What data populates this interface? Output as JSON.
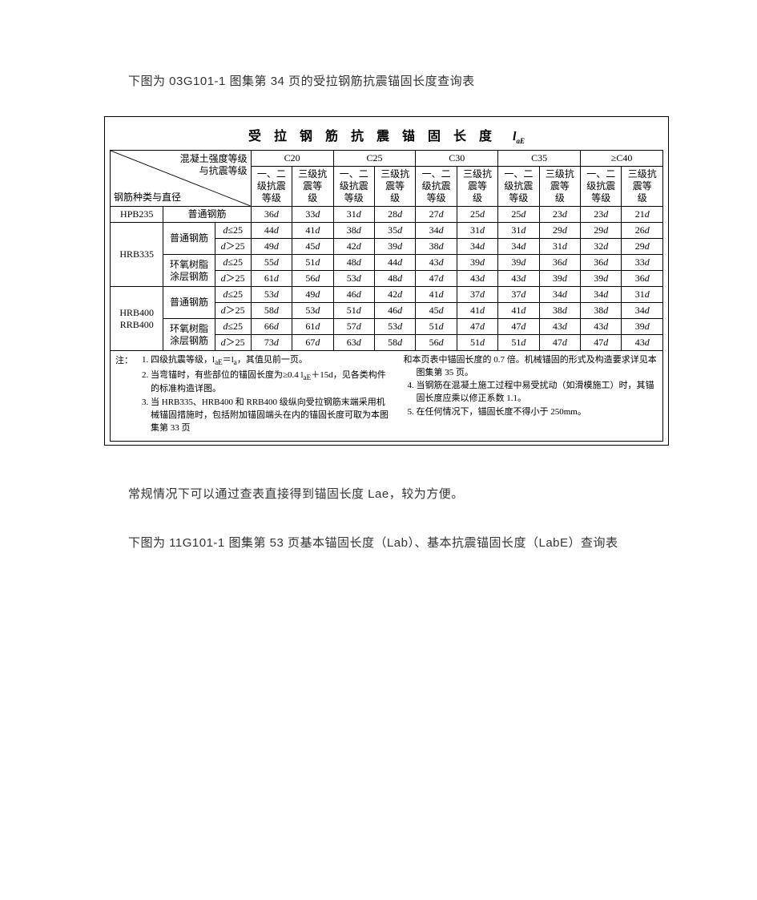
{
  "intro1": "下图为 03G101-1 图集第 34 页的受拉钢筋抗震锚固长度查询表",
  "tableTitle": "受 拉 钢 筋 抗 震 锚 固 长 度",
  "tableTitleSymbol": "l",
  "tableTitleSub": "aE",
  "diagTop1": "混凝土强度等级",
  "diagTop2": "与抗震等级",
  "diagBottom": "钢筋种类与直径",
  "gradeHeaders": [
    "C20",
    "C25",
    "C30",
    "C35",
    "≥C40"
  ],
  "subHeaderA": "一、二级抗震等级",
  "subHeaderB": "三级抗震等　　级",
  "rows": [
    {
      "h1": "HPB235",
      "h2": "普通钢筋",
      "cond": "",
      "vals": [
        "36d",
        "33d",
        "31d",
        "28d",
        "27d",
        "25d",
        "25d",
        "23d",
        "23d",
        "21d"
      ]
    },
    {
      "h1": "HRB335",
      "h2": "普通钢筋",
      "cond": "d≤25",
      "vals": [
        "44d",
        "41d",
        "38d",
        "35d",
        "34d",
        "31d",
        "31d",
        "29d",
        "29d",
        "26d"
      ]
    },
    {
      "h1": "",
      "h2": "",
      "cond": "d＞25",
      "vals": [
        "49d",
        "45d",
        "42d",
        "39d",
        "38d",
        "34d",
        "34d",
        "31d",
        "32d",
        "29d"
      ]
    },
    {
      "h1": "",
      "h2": "环氧树脂涂层钢筋",
      "cond": "d≤25",
      "vals": [
        "55d",
        "51d",
        "48d",
        "44d",
        "43d",
        "39d",
        "39d",
        "36d",
        "36d",
        "33d"
      ]
    },
    {
      "h1": "",
      "h2": "",
      "cond": "d＞25",
      "vals": [
        "61d",
        "56d",
        "53d",
        "48d",
        "47d",
        "43d",
        "43d",
        "39d",
        "39d",
        "36d"
      ]
    },
    {
      "h1": "HRB400\nRRB400",
      "h2": "普通钢筋",
      "cond": "d≤25",
      "vals": [
        "53d",
        "49d",
        "46d",
        "42d",
        "41d",
        "37d",
        "37d",
        "34d",
        "34d",
        "31d"
      ]
    },
    {
      "h1": "",
      "h2": "",
      "cond": "d＞25",
      "vals": [
        "58d",
        "53d",
        "51d",
        "46d",
        "45d",
        "41d",
        "41d",
        "38d",
        "38d",
        "34d"
      ]
    },
    {
      "h1": "",
      "h2": "环氧树脂涂层钢筋",
      "cond": "d≤25",
      "vals": [
        "66d",
        "61d",
        "57d",
        "53d",
        "51d",
        "47d",
        "47d",
        "43d",
        "43d",
        "39d"
      ]
    },
    {
      "h1": "",
      "h2": "",
      "cond": "d＞25",
      "vals": [
        "73d",
        "67d",
        "63d",
        "58d",
        "56d",
        "51d",
        "51d",
        "47d",
        "47d",
        "43d"
      ]
    }
  ],
  "notesLabel": "注：",
  "notesLeft": [
    "四级抗震等级，l<sub>aE</sub>＝l<sub>a</sub>，其值见前一页。",
    "当弯锚时，有些部位的锚固长度为≥0.4 l<sub>aE</sub>＋15d，见各类构件的标准构造详图。",
    "当 HRB335、HRB400 和 RRB400 级纵向受拉钢筋末端采用机械锚固措施时，包括附加锚固端头在内的锚固长度可取为本图集第 33 页"
  ],
  "notesRightLead": "和本页表中锚固长度的 0.7 倍。机械锚固的形式及构造要求详见本图集第 35 页。",
  "notesRight": [
    "当钢筋在混凝土施工过程中易受扰动（如滑模施工）时，其锚固长度应乘以修正系数 1.1。",
    "在任何情况下，锚固长度不得小于 250mm。"
  ],
  "para1": "常规情况下可以通过查表直接得到锚固长度 Lae，较为方便。",
  "para2": "下图为 11G101-1 图集第 53 页基本锚固长度（Lab）、基本抗震锚固长度（LabE）查询表"
}
